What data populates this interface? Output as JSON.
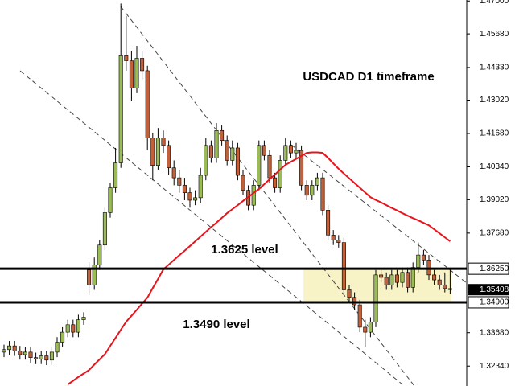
{
  "chart_data": {
    "type": "candlestick",
    "title": "USDCAD D1 timeframe",
    "annotations": [
      "1.3625 level",
      "1.3490 level"
    ],
    "open": [
      1.329,
      1.33,
      1.3315,
      1.3295,
      1.328,
      1.329,
      1.3268,
      1.3262,
      1.3275,
      1.3258,
      1.329,
      1.333,
      1.337,
      1.34,
      1.337,
      1.342,
      1.362,
      1.356,
      1.364,
      1.372,
      1.385,
      1.395,
      1.405,
      1.448,
      1.446,
      1.435,
      1.447,
      1.442,
      1.415,
      1.404,
      1.415,
      1.412,
      1.403,
      1.399,
      1.396,
      1.393,
      1.39,
      1.391,
      1.4,
      1.412,
      1.407,
      1.418,
      1.414,
      1.406,
      1.411,
      1.4,
      1.394,
      1.388,
      1.396,
      1.412,
      1.408,
      1.399,
      1.395,
      1.406,
      1.412,
      1.409,
      1.41,
      1.396,
      1.392,
      1.396,
      1.399,
      1.386,
      1.376,
      1.374,
      1.373,
      1.354,
      1.351,
      1.348,
      1.339,
      1.337,
      1.341,
      1.36,
      1.359,
      1.356,
      1.36,
      1.357,
      1.361,
      1.355,
      1.363,
      1.368,
      1.366,
      1.36,
      1.358,
      1.356,
      1.3545
    ],
    "high": [
      1.332,
      1.3335,
      1.3335,
      1.3315,
      1.331,
      1.331,
      1.3288,
      1.3295,
      1.3295,
      1.331,
      1.335,
      1.339,
      1.342,
      1.342,
      1.344,
      1.345,
      1.365,
      1.367,
      1.374,
      1.387,
      1.397,
      1.411,
      1.469,
      1.464,
      1.45,
      1.452,
      1.45,
      1.444,
      1.417,
      1.419,
      1.418,
      1.414,
      1.406,
      1.402,
      1.399,
      1.395,
      1.394,
      1.403,
      1.415,
      1.414,
      1.421,
      1.42,
      1.416,
      1.414,
      1.413,
      1.402,
      1.396,
      1.398,
      1.414,
      1.414,
      1.41,
      1.401,
      1.408,
      1.415,
      1.414,
      1.413,
      1.412,
      1.398,
      1.398,
      1.401,
      1.401,
      1.388,
      1.378,
      1.376,
      1.375,
      1.356,
      1.353,
      1.35,
      1.342,
      1.343,
      1.362,
      1.363,
      1.361,
      1.362,
      1.362,
      1.363,
      1.363,
      1.365,
      1.373,
      1.37,
      1.368,
      1.362,
      1.36,
      1.361,
      1.362
    ],
    "low": [
      1.327,
      1.328,
      1.3275,
      1.326,
      1.326,
      1.3248,
      1.3242,
      1.3242,
      1.3238,
      1.3238,
      1.327,
      1.331,
      1.335,
      1.335,
      1.335,
      1.34,
      1.352,
      1.354,
      1.362,
      1.37,
      1.383,
      1.393,
      1.403,
      1.442,
      1.43,
      1.433,
      1.438,
      1.41,
      1.398,
      1.402,
      1.409,
      1.4,
      1.396,
      1.393,
      1.39,
      1.387,
      1.388,
      1.389,
      1.398,
      1.405,
      1.405,
      1.412,
      1.404,
      1.404,
      1.398,
      1.392,
      1.386,
      1.386,
      1.394,
      1.406,
      1.397,
      1.393,
      1.393,
      1.404,
      1.407,
      1.407,
      1.394,
      1.39,
      1.39,
      1.394,
      1.384,
      1.374,
      1.372,
      1.371,
      1.352,
      1.349,
      1.346,
      1.337,
      1.331,
      1.335,
      1.339,
      1.357,
      1.354,
      1.354,
      1.355,
      1.355,
      1.353,
      1.353,
      1.361,
      1.364,
      1.358,
      1.356,
      1.354,
      1.353,
      1.3525
    ],
    "close": [
      1.33,
      1.3315,
      1.3295,
      1.328,
      1.329,
      1.3268,
      1.3262,
      1.3275,
      1.3258,
      1.329,
      1.333,
      1.337,
      1.34,
      1.337,
      1.342,
      1.343,
      1.356,
      1.364,
      1.372,
      1.385,
      1.395,
      1.405,
      1.448,
      1.446,
      1.435,
      1.447,
      1.442,
      1.415,
      1.404,
      1.415,
      1.412,
      1.403,
      1.399,
      1.396,
      1.393,
      1.39,
      1.391,
      1.4,
      1.412,
      1.407,
      1.418,
      1.414,
      1.406,
      1.411,
      1.4,
      1.394,
      1.388,
      1.396,
      1.412,
      1.408,
      1.399,
      1.395,
      1.406,
      1.412,
      1.409,
      1.41,
      1.396,
      1.392,
      1.396,
      1.399,
      1.386,
      1.376,
      1.374,
      1.373,
      1.354,
      1.351,
      1.348,
      1.339,
      1.337,
      1.341,
      1.36,
      1.359,
      1.356,
      1.36,
      1.357,
      1.361,
      1.355,
      1.363,
      1.368,
      1.366,
      1.36,
      1.358,
      1.356,
      1.3545,
      1.3541
    ],
    "moving_average": {
      "color": "#e8141c",
      "values": [
        null,
        null,
        null,
        null,
        null,
        null,
        null,
        null,
        null,
        null,
        null,
        null,
        1.316,
        1.3175,
        1.319,
        1.3204,
        1.3218,
        1.324,
        1.3261,
        1.3282,
        1.3315,
        1.3347,
        1.338,
        1.3412,
        1.3436,
        1.346,
        1.3485,
        1.3509,
        1.3547,
        1.3584,
        1.3622,
        1.3641,
        1.366,
        1.3679,
        1.3697,
        1.3716,
        1.3735,
        1.3754,
        1.3773,
        1.3792,
        1.381,
        1.3829,
        1.3848,
        1.3864,
        1.388,
        1.3897,
        1.3913,
        1.3929,
        1.3945,
        1.3964,
        1.3984,
        1.4003,
        1.4023,
        1.4042,
        1.4054,
        1.4066,
        1.4078,
        1.409,
        1.4092,
        1.4092,
        1.409,
        1.407,
        1.4048,
        1.4026,
        1.4007,
        1.3988,
        1.3969,
        1.395,
        1.3931,
        1.3912,
        1.3901,
        1.3891,
        1.388,
        1.3869,
        1.3859,
        1.3848,
        1.3838,
        1.3828,
        1.3819,
        1.3809,
        1.3799,
        1.3783,
        1.3767,
        1.3751,
        1.3735
      ]
    },
    "up_color": "#9bbb59",
    "down_color": "#c0613b",
    "levels": [
      {
        "value": 1.3625,
        "label": "1.36250"
      },
      {
        "value": 1.349,
        "label": "1.34900"
      }
    ],
    "last_price": {
      "value": 1.35408,
      "label": "1.35408"
    },
    "ylim": [
      1.3154,
      1.4704
    ],
    "yticks": [
      {
        "value": 1.47,
        "label": "1.47000"
      },
      {
        "value": 1.4568,
        "label": "1.45680"
      },
      {
        "value": 1.4433,
        "label": "1.44330"
      },
      {
        "value": 1.4302,
        "label": "1.43020"
      },
      {
        "value": 1.4168,
        "label": "1.41680"
      },
      {
        "value": 1.4034,
        "label": "1.40340"
      },
      {
        "value": 1.3902,
        "label": "1.39020"
      },
      {
        "value": 1.3768,
        "label": "1.37680"
      },
      {
        "value": 1.3368,
        "label": "1.33680"
      },
      {
        "value": 1.3234,
        "label": "1.32340"
      }
    ]
  }
}
